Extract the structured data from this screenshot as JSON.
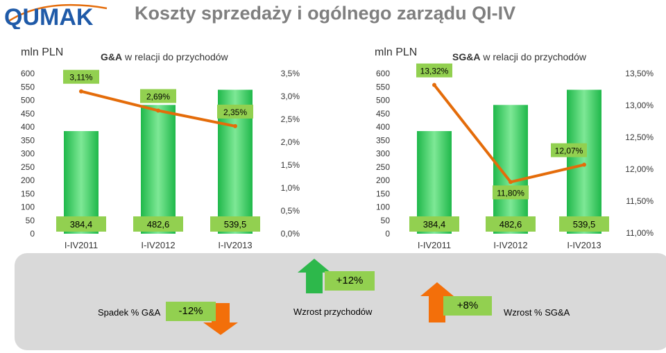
{
  "logo_text": "QUMAK",
  "title": "Koszty sprzedaży i ogólnego zarządu QI-IV",
  "colors": {
    "bar": "#1fb84a",
    "bar_light": "#7ee896",
    "line": "#e46c0a",
    "label_bg": "#92d050",
    "arrow_green": "#2db84b",
    "arrow_orange": "#f36f0a",
    "panel": "#d9d9d9",
    "title": "#7f7f7f"
  },
  "chart_data": [
    {
      "type": "bar",
      "unit_label": "mln PLN",
      "title_bold": "G&A",
      "title_rest": " w relacji do przychodów",
      "categories": [
        "I-IV2011",
        "I-IV2012",
        "I-IV2013"
      ],
      "values": [
        384.4,
        482.6,
        539.5
      ],
      "value_labels": [
        "384,4",
        "482,6",
        "539,5"
      ],
      "ylim": [
        0,
        600
      ],
      "y_ticks": [
        "0",
        "50",
        "100",
        "150",
        "200",
        "250",
        "300",
        "350",
        "400",
        "450",
        "500",
        "550",
        "600"
      ],
      "line_series": {
        "values": [
          3.11,
          2.69,
          2.35
        ],
        "labels": [
          "3,11%",
          "2,69%",
          "2,35%"
        ]
      },
      "y2lim": [
        0,
        3.5
      ],
      "y2_ticks": [
        "0,0%",
        "0,5%",
        "1,0%",
        "1,5%",
        "2,0%",
        "2,5%",
        "3,0%",
        "3,5%"
      ]
    },
    {
      "type": "bar",
      "unit_label": "mln PLN",
      "title_bold": "SG&A",
      "title_rest": " w relacji do przychodów",
      "categories": [
        "I-IV2011",
        "I-IV2012",
        "I-IV2013"
      ],
      "values": [
        384.4,
        482.6,
        539.5
      ],
      "value_labels": [
        "384,4",
        "482,6",
        "539,5"
      ],
      "ylim": [
        0,
        600
      ],
      "y_ticks": [
        "0",
        "50",
        "100",
        "150",
        "200",
        "250",
        "300",
        "350",
        "400",
        "450",
        "500",
        "550",
        "600"
      ],
      "line_series": {
        "values": [
          13.32,
          11.8,
          12.07
        ],
        "labels": [
          "13,32%",
          "11,80%",
          "12,07%"
        ]
      },
      "y2lim": [
        11.0,
        13.5
      ],
      "y2_ticks": [
        "11,00%",
        "11,50%",
        "12,00%",
        "12,50%",
        "13,00%",
        "13,50%"
      ]
    }
  ],
  "summary": {
    "ga_change": "-12%",
    "ga_label": "Spadek % G&A",
    "revenue_change": "+12%",
    "revenue_label": "Wzrost przychodów",
    "sga_change": "+8%",
    "sga_label": "Wzrost % SG&A"
  }
}
